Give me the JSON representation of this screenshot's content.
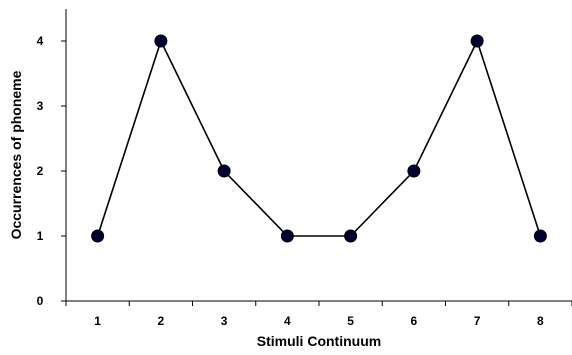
{
  "chart_data": {
    "type": "line",
    "title": "",
    "xlabel": "Stimuli Continuum",
    "ylabel": "Occurrences of phoneme",
    "categories": [
      "1",
      "2",
      "3",
      "4",
      "5",
      "6",
      "7",
      "8"
    ],
    "series": [
      {
        "values": [
          1,
          4,
          2,
          1,
          1,
          2,
          4,
          1
        ]
      }
    ],
    "ylim": [
      0,
      4
    ],
    "yticks": [
      "0",
      "1",
      "2",
      "3",
      "4"
    ],
    "grid": false,
    "legend": "none",
    "colors": {
      "line": "#000000",
      "marker": "#000033",
      "axis": "#000000"
    }
  }
}
